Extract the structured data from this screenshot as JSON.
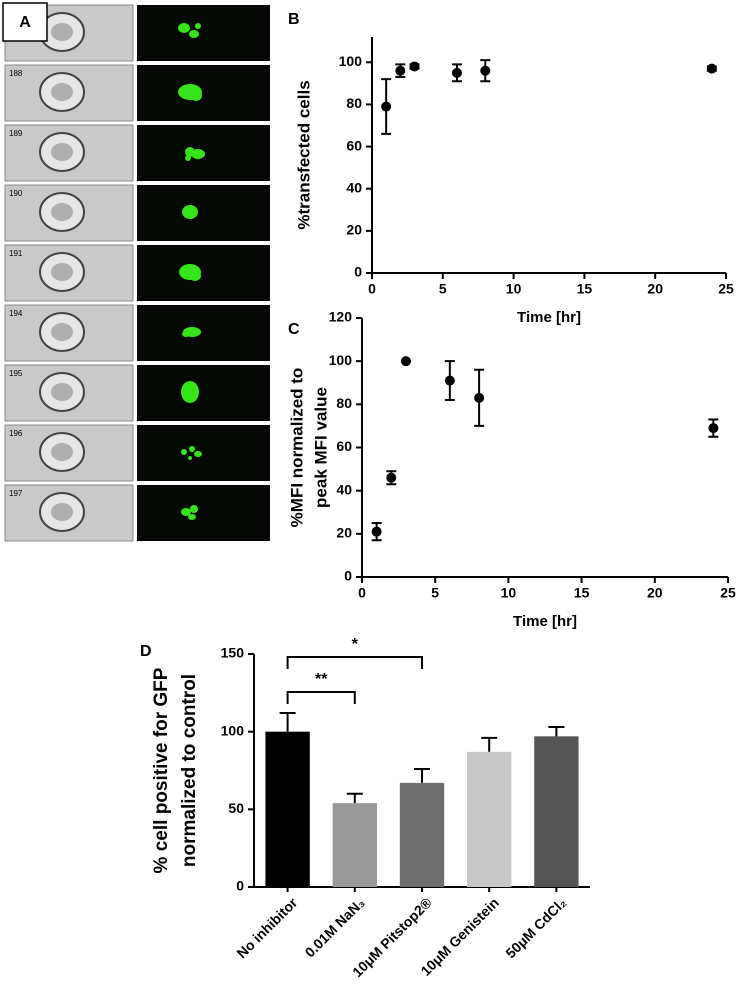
{
  "image_panel": {
    "label": "A",
    "cell_ids": [
      "188",
      "189",
      "190",
      "191",
      "194",
      "195",
      "196",
      "197"
    ]
  },
  "chart_data": [
    {
      "type": "scatter",
      "label": "B",
      "x": [
        1,
        2,
        3,
        6,
        8,
        24
      ],
      "values": [
        79,
        96,
        98,
        95,
        96,
        97
      ],
      "errors": [
        13,
        3,
        1,
        4,
        5,
        1
      ],
      "color": "#000000",
      "xlim": [
        0,
        25
      ],
      "xticks": [
        0,
        5,
        10,
        15,
        20,
        25
      ],
      "ylim": [
        0,
        112
      ],
      "yticks": [
        0,
        20,
        40,
        60,
        80,
        100
      ],
      "xlabel": "Time [hr]",
      "ylabel": [
        "%transfected cells"
      ]
    },
    {
      "type": "scatter",
      "label": "C",
      "x": [
        1,
        2,
        3,
        6,
        8,
        24
      ],
      "values": [
        21,
        46,
        100,
        91,
        83,
        69
      ],
      "errors": [
        4,
        3,
        0,
        9,
        13,
        4
      ],
      "color": "#000000",
      "xlim": [
        0,
        25
      ],
      "xticks": [
        0,
        5,
        10,
        15,
        20,
        25
      ],
      "ylim": [
        0,
        120
      ],
      "yticks": [
        0,
        20,
        40,
        60,
        80,
        100,
        120
      ],
      "xlabel": "Time [hr]",
      "ylabel": [
        "%MFI normalized to",
        "peak MFI value"
      ]
    },
    {
      "type": "bar",
      "label": "D",
      "categories": [
        "No inhibitor",
        "0.01M NaN₃",
        "10μM Pitstop2®",
        "10μM Genistein",
        "50μM CdCl₂"
      ],
      "values": [
        100,
        54,
        67,
        87,
        97
      ],
      "errors": [
        12,
        6,
        9,
        9,
        6
      ],
      "colors": [
        "#000000",
        "#999999",
        "#6e6e6e",
        "#c8c8c8",
        "#555555"
      ],
      "ylim": [
        0,
        150
      ],
      "yticks": [
        0,
        50,
        100,
        150
      ],
      "ylabel": [
        "% cell positive for GFP",
        "normalized to control"
      ],
      "annotations": [
        "**",
        "*"
      ]
    }
  ]
}
